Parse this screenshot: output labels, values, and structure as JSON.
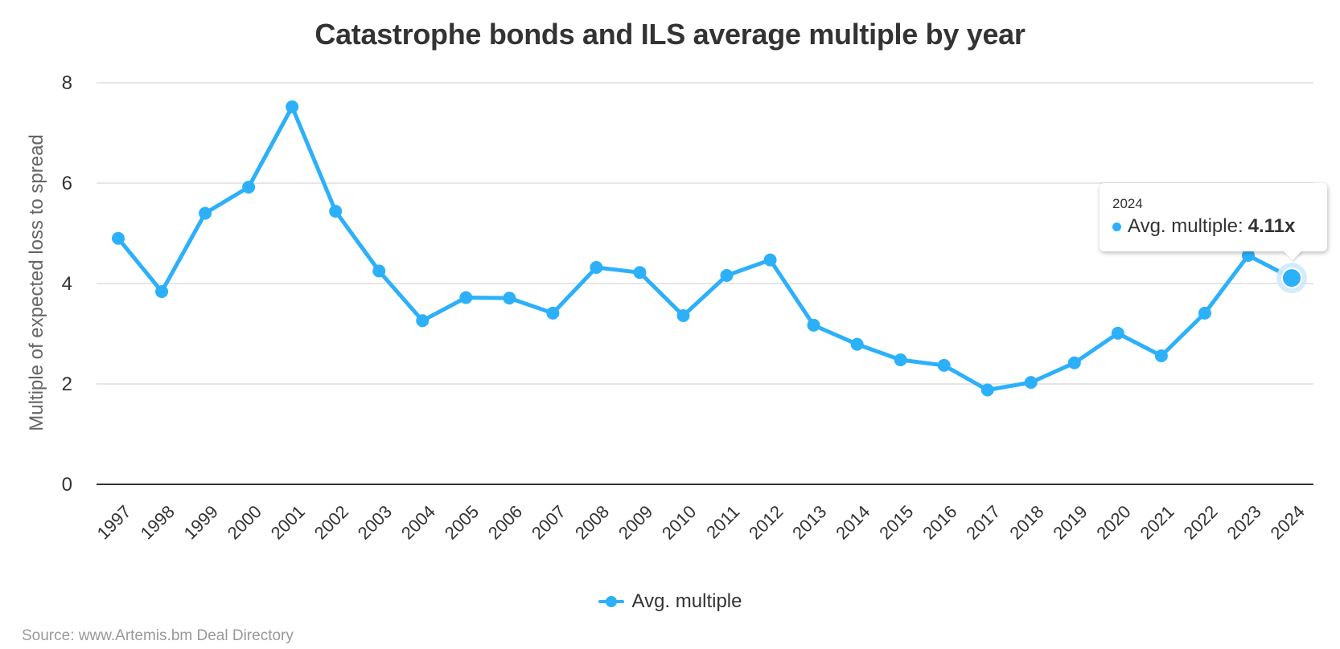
{
  "title": "Catastrophe bonds and ILS average multiple by year",
  "y_axis": {
    "title": "Multiple of expected loss to spread",
    "ticks": [
      "0",
      "2",
      "4",
      "6",
      "8"
    ]
  },
  "legend": {
    "label": "Avg. multiple"
  },
  "source": "Source: www.Artemis.bm Deal Directory",
  "tooltip": {
    "header": "2024",
    "series_label": "Avg. multiple:",
    "value": "4.11x"
  },
  "colors": {
    "series": "#2db0fa",
    "grid": "#e6e6e6",
    "axis_line": "#333333",
    "title": "#333333",
    "axis_title": "#666666",
    "source": "#999999",
    "halo": "#cfe9fb"
  },
  "chart_data": {
    "type": "line",
    "title": "Catastrophe bonds and ILS average multiple by year",
    "xlabel": "",
    "ylabel": "Multiple of expected loss to spread",
    "ylim": [
      0,
      8
    ],
    "yticks": [
      0,
      2,
      4,
      6,
      8
    ],
    "grid": true,
    "legend_position": "bottom-center",
    "categories": [
      "1997",
      "1998",
      "1999",
      "2000",
      "2001",
      "2002",
      "2003",
      "2004",
      "2005",
      "2006",
      "2007",
      "2008",
      "2009",
      "2010",
      "2011",
      "2012",
      "2013",
      "2014",
      "2015",
      "2016",
      "2017",
      "2018",
      "2019",
      "2020",
      "2021",
      "2022",
      "2023",
      "2024"
    ],
    "series": [
      {
        "name": "Avg. multiple",
        "values": [
          4.9,
          3.84,
          5.4,
          5.92,
          7.52,
          5.44,
          4.25,
          3.26,
          3.72,
          3.71,
          3.41,
          4.32,
          4.22,
          3.36,
          4.16,
          4.47,
          3.17,
          2.79,
          2.48,
          2.37,
          1.88,
          2.03,
          2.42,
          3.01,
          2.56,
          3.41,
          4.56,
          4.11
        ]
      }
    ],
    "annotations": [
      {
        "type": "tooltip",
        "x": "2024",
        "text": "Avg. multiple: 4.11x"
      }
    ]
  }
}
